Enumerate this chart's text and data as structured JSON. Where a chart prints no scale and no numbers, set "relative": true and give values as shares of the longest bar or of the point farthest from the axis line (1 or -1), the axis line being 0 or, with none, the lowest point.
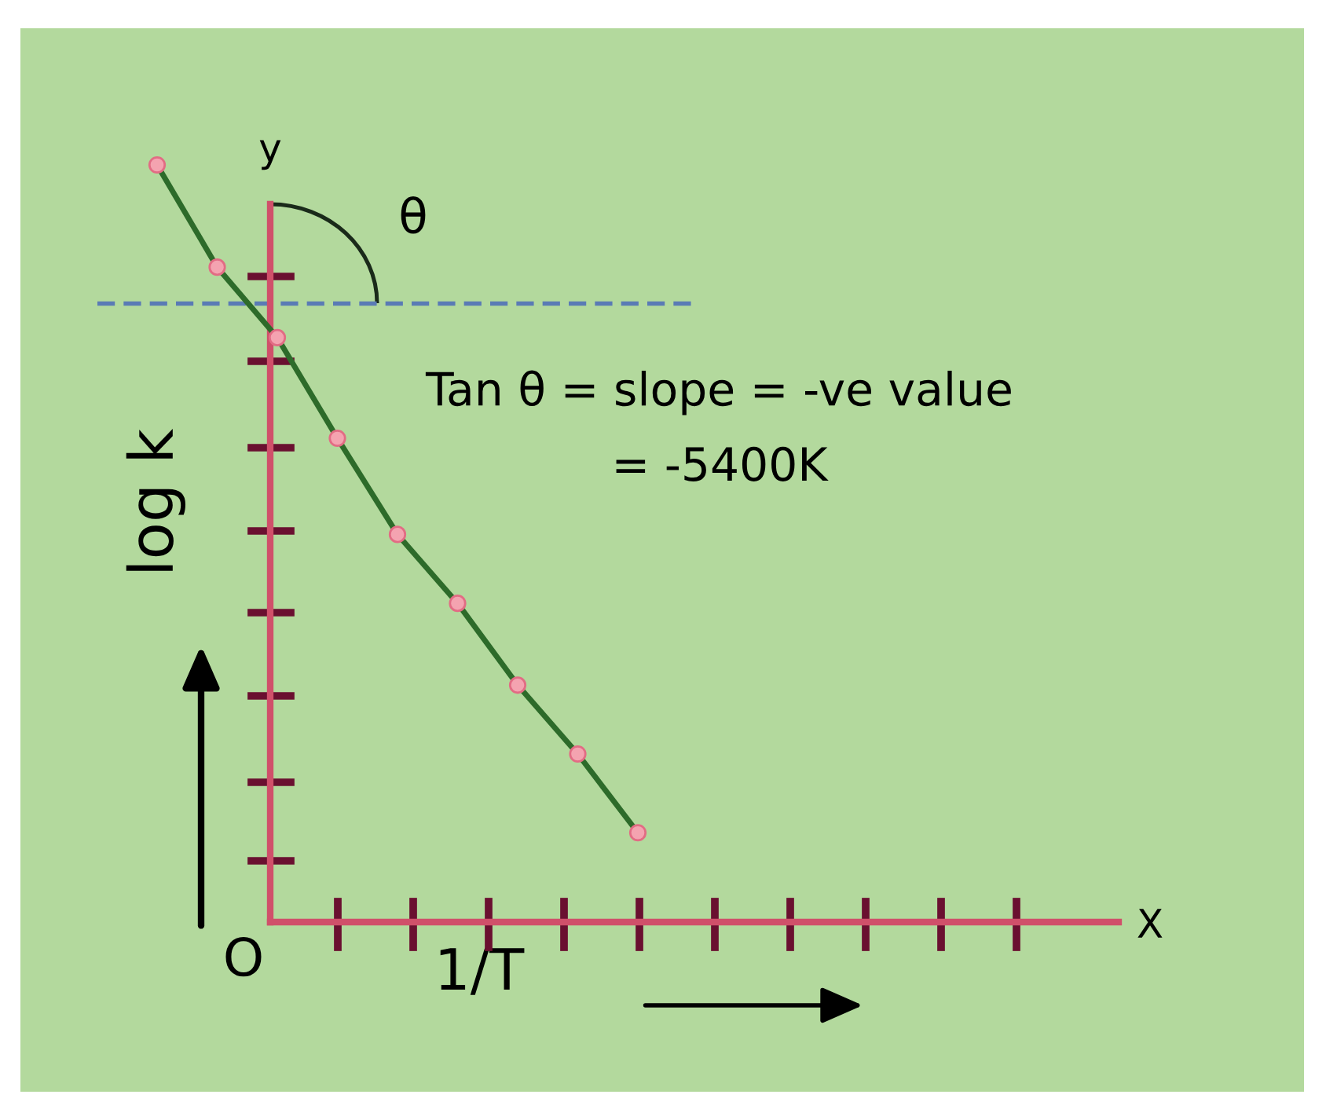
{
  "chart_data": {
    "type": "line",
    "relative": true,
    "xlabel": "1/T",
    "ylabel": "log k",
    "categories": [
      null,
      null,
      null,
      null,
      null,
      null,
      null,
      null,
      null
    ],
    "series": [
      {
        "color": "#2d6b2a",
        "values": [
          1,
          0.865,
          0.772,
          0.639,
          0.512,
          0.421,
          0.313,
          0.222,
          0.118
        ]
      }
    ],
    "marker": "circle",
    "line_style": "solid",
    "legend": false,
    "ref_lines": [
      {
        "axis": "y",
        "value": 0.817,
        "color": "#5a7bb5",
        "line_style": "dashed"
      }
    ],
    "annotations": [
      "y",
      "X",
      "O",
      "θ",
      "Tan θ = slope = -ve value",
      "= -5400K"
    ]
  }
}
